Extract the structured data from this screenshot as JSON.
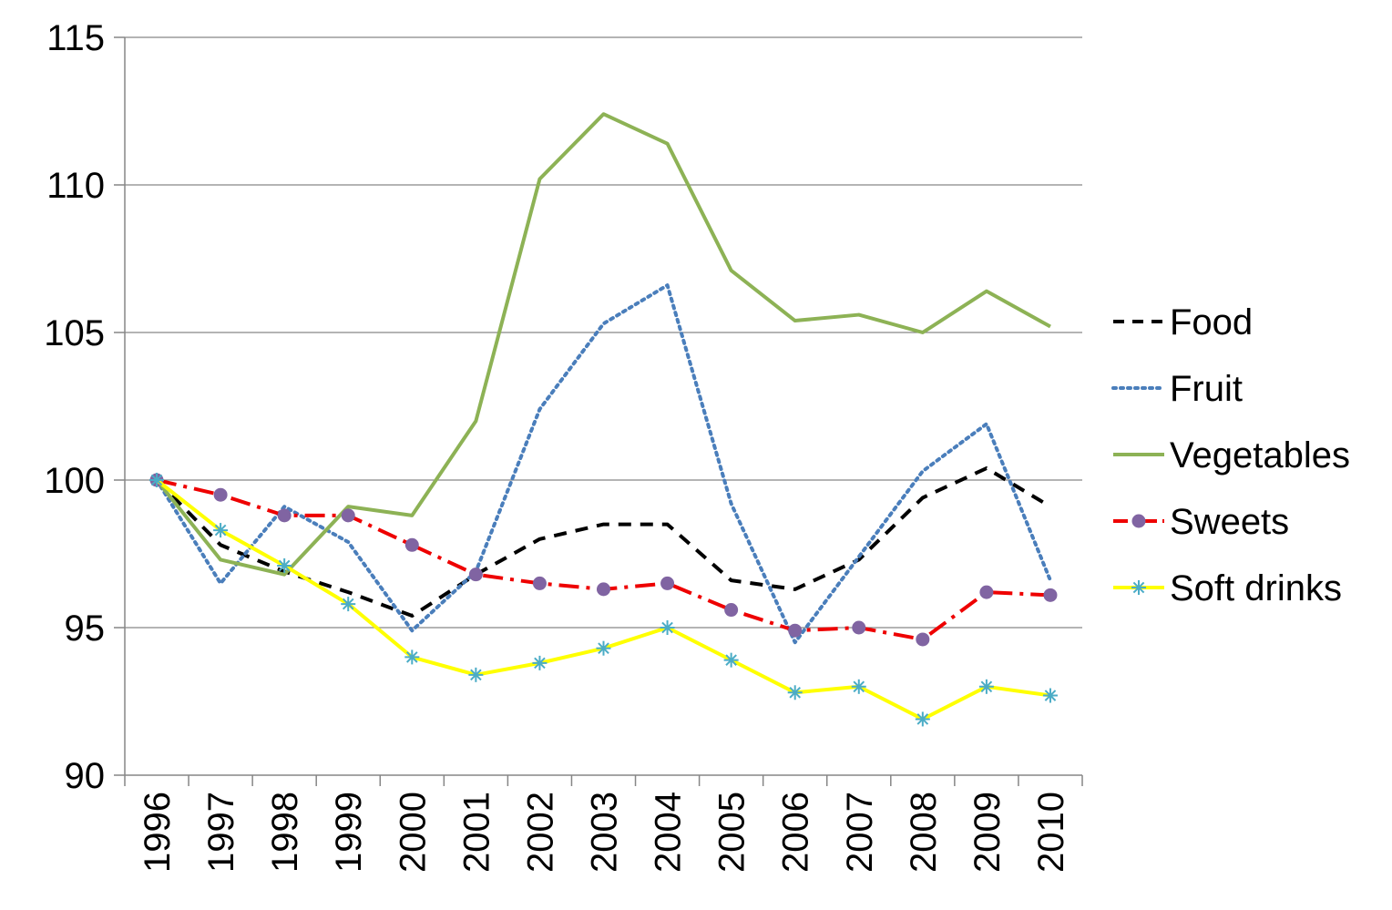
{
  "chart_data": {
    "type": "line",
    "title": "",
    "xlabel": "",
    "ylabel": "",
    "categories": [
      "1996",
      "1997",
      "1998",
      "1999",
      "2000",
      "2001",
      "2002",
      "2003",
      "2004",
      "2005",
      "2006",
      "2007",
      "2008",
      "2009",
      "2010"
    ],
    "ylim": [
      90,
      115
    ],
    "yticks": [
      90,
      95,
      100,
      105,
      110,
      115
    ],
    "grid": true,
    "legend_position": "right",
    "series": [
      {
        "name": "Food",
        "color": "#000000",
        "style": "dashed",
        "marker": "none",
        "values": [
          100,
          97.8,
          96.9,
          96.2,
          95.4,
          96.8,
          98.0,
          98.5,
          98.5,
          96.6,
          96.3,
          97.3,
          99.4,
          100.4,
          99.1
        ]
      },
      {
        "name": "Fruit",
        "color": "#4a7ebb",
        "style": "dotted",
        "marker": "none",
        "values": [
          100,
          96.5,
          99.1,
          97.9,
          94.9,
          96.9,
          102.4,
          105.3,
          106.6,
          99.2,
          94.5,
          97.4,
          100.3,
          101.9,
          96.6
        ]
      },
      {
        "name": "Vegetables",
        "color": "#8db255",
        "style": "solid",
        "marker": "none",
        "values": [
          100,
          97.3,
          96.8,
          99.1,
          98.8,
          102.0,
          110.2,
          112.4,
          111.4,
          107.1,
          105.4,
          105.6,
          105.0,
          106.4,
          105.2
        ]
      },
      {
        "name": "Sweets",
        "color": "#ee0000",
        "style": "dashdot",
        "marker": "circle",
        "marker_color": "#8064a2",
        "values": [
          100,
          99.5,
          98.8,
          98.8,
          97.8,
          96.8,
          96.5,
          96.3,
          96.5,
          95.6,
          94.9,
          95.0,
          94.6,
          96.2,
          96.1
        ]
      },
      {
        "name": "Soft drinks",
        "color": "#ffff00",
        "style": "solid",
        "marker": "asterisk",
        "marker_color": "#4bacc6",
        "values": [
          100,
          98.3,
          97.1,
          95.8,
          94.0,
          93.4,
          93.8,
          94.3,
          95.0,
          93.9,
          92.8,
          93.0,
          91.9,
          93.0,
          92.7
        ]
      }
    ]
  }
}
